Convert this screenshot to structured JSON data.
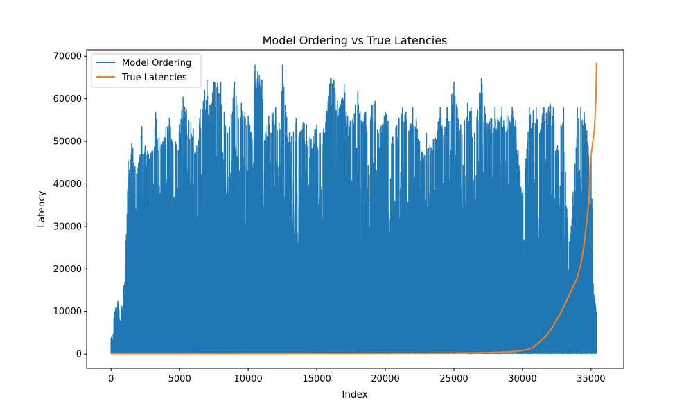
{
  "chart_data": {
    "type": "line",
    "title": "Model Ordering vs True Latencies",
    "xlabel": "Index",
    "ylabel": "Latency",
    "xlim": [
      -1780,
      37380
    ],
    "ylim": [
      -3400,
      71500
    ],
    "xticks": [
      0,
      5000,
      10000,
      15000,
      20000,
      25000,
      30000,
      35000
    ],
    "yticks": [
      0,
      10000,
      20000,
      30000,
      40000,
      50000,
      60000,
      70000
    ],
    "grid": false,
    "legend_position": "top-left",
    "series": [
      {
        "name": "Model Ordering",
        "color": "#1f77b4",
        "note_values": "upper envelope of a dense oscillating series (index, peak latency); lower envelope near 100",
        "x": [
          0,
          250,
          500,
          1000,
          1250,
          1500,
          2000,
          2250,
          2500,
          3000,
          3250,
          3500,
          4000,
          4250,
          4500,
          5000,
          5250,
          5500,
          6000,
          6250,
          6500,
          7000,
          7250,
          7500,
          8000,
          8250,
          8500,
          9000,
          9250,
          9500,
          10000,
          10250,
          10500,
          11000,
          11250,
          11500,
          12000,
          12250,
          12500,
          12750,
          13000,
          13500,
          14000,
          14250,
          14500,
          15000,
          15250,
          15500,
          16000,
          16250,
          16500,
          17000,
          17250,
          17500,
          18000,
          18250,
          18500,
          19000,
          19250,
          19500,
          20000,
          20250,
          20500,
          21000,
          21250,
          21500,
          22000,
          22250,
          22500,
          23000,
          23250,
          23500,
          24000,
          24250,
          24500,
          25000,
          25250,
          25500,
          26000,
          26250,
          26500,
          27000,
          27250,
          27500,
          28000,
          28250,
          28500,
          29000,
          29250,
          29500,
          30000,
          30250,
          30500,
          31000,
          31250,
          31500,
          32000,
          32250,
          32500,
          33000,
          33250,
          33500,
          34000,
          34250,
          34500,
          35000,
          35250,
          35400
        ],
        "y": [
          3500,
          10000,
          12500,
          17000,
          45500,
          49500,
          45000,
          53500,
          49000,
          48000,
          57000,
          51000,
          53500,
          55500,
          50000,
          54000,
          60500,
          57500,
          53000,
          49000,
          57500,
          64500,
          58500,
          64000,
          64000,
          57000,
          52000,
          64000,
          58500,
          59000,
          56000,
          52000,
          68000,
          64500,
          52000,
          56000,
          58000,
          54500,
          68000,
          57000,
          52000,
          55500,
          54500,
          54000,
          51000,
          54000,
          52000,
          53000,
          65000,
          64500,
          59500,
          63500,
          56000,
          55000,
          62000,
          55000,
          57000,
          58500,
          59500,
          52000,
          57000,
          55000,
          51000,
          55500,
          58000,
          57000,
          58000,
          55500,
          50000,
          52000,
          49000,
          50500,
          58000,
          51500,
          58000,
          64000,
          58000,
          54000,
          59000,
          58000,
          52000,
          65000,
          58000,
          54000,
          58000,
          55000,
          58000,
          56000,
          58000,
          55000,
          38000,
          46000,
          58000,
          58000,
          52000,
          58000,
          59000,
          58000,
          48000,
          58000,
          32000,
          28000,
          58000,
          58000,
          57000,
          47000,
          13000,
          10000
        ],
        "floor": 100
      },
      {
        "name": "True Latencies",
        "color": "#ff7f0e",
        "x": [
          0,
          5000,
          10000,
          15000,
          20000,
          25000,
          27000,
          28500,
          29500,
          30000,
          30500,
          30800,
          31000,
          31300,
          31600,
          32000,
          32500,
          33000,
          33500,
          34000,
          34300,
          34500,
          34700,
          34850,
          34950,
          35050,
          35150,
          35250,
          35350,
          35400
        ],
        "y": [
          100,
          110,
          120,
          135,
          160,
          220,
          300,
          450,
          600,
          800,
          1200,
          1600,
          2200,
          3000,
          3900,
          5400,
          8000,
          11000,
          14500,
          18000,
          21800,
          26000,
          31500,
          36000,
          46000,
          48000,
          50500,
          53000,
          60000,
          68500
        ]
      }
    ]
  }
}
